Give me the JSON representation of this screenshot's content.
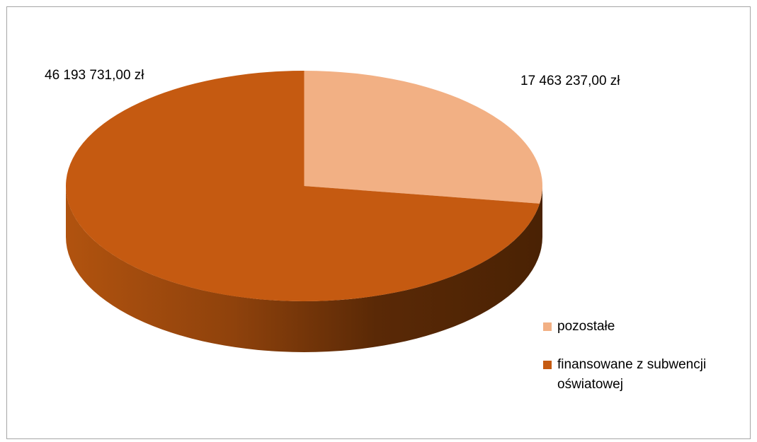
{
  "chart_data": {
    "type": "pie",
    "style": "3d",
    "categories": [
      "pozostałe",
      "finansowane z subwencji oświatowej"
    ],
    "values": [
      17463237.0,
      46193731.0
    ],
    "data_labels": [
      "17 463 237,00 zł",
      "46 193 731,00 zł"
    ],
    "colors": [
      "#f2b084",
      "#c55a11"
    ],
    "legend_position": "right-bottom"
  },
  "legend": {
    "items": [
      {
        "label": "pozostałe",
        "color": "#f2b084"
      },
      {
        "label": "finansowane z subwencji oświatowej",
        "color": "#c55a11"
      }
    ]
  },
  "labels": {
    "slice_0": "17 463 237,00 zł",
    "slice_1": "46 193 731,00 zł"
  }
}
